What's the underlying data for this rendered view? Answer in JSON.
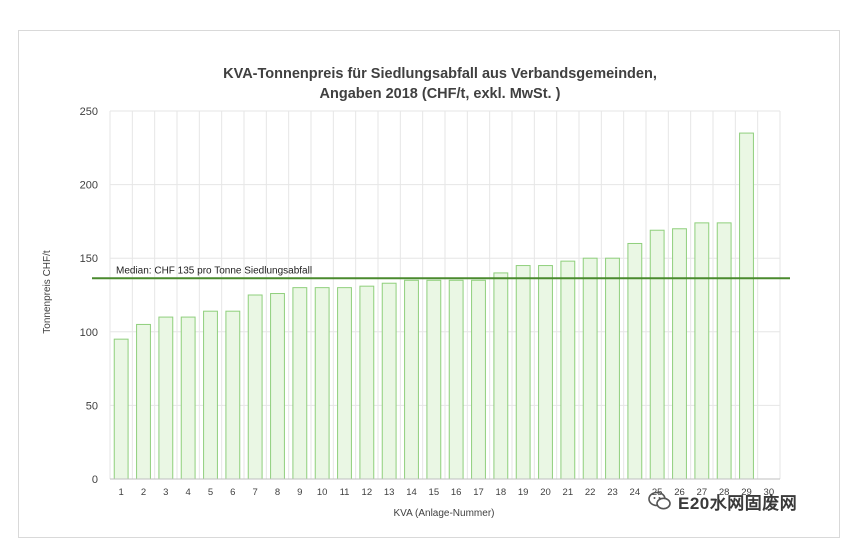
{
  "chart_data": {
    "type": "bar",
    "title_line1": "KVA-Tonnenpreis für Siedlungsabfall aus Verbandsgemeinden,",
    "title_line2": "Angaben 2018 (CHF/t, exkl. MwSt. )",
    "xlabel": "KVA (Anlage-Nummer)",
    "ylabel": "Tonnenpreis CHF/t",
    "ylim": [
      0,
      250
    ],
    "yticks": [
      0,
      50,
      100,
      150,
      200,
      250
    ],
    "categories": [
      "1",
      "2",
      "3",
      "4",
      "5",
      "6",
      "7",
      "8",
      "9",
      "10",
      "11",
      "12",
      "13",
      "14",
      "15",
      "16",
      "17",
      "18",
      "19",
      "20",
      "21",
      "22",
      "23",
      "24",
      "25",
      "26",
      "27",
      "28",
      "29",
      "30"
    ],
    "values": [
      95,
      105,
      110,
      110,
      114,
      114,
      125,
      126,
      130,
      130,
      130,
      131,
      133,
      135,
      135,
      135,
      135,
      140,
      145,
      145,
      148,
      150,
      150,
      160,
      169,
      170,
      174,
      174,
      235,
      0
    ],
    "bar_fill": "#eaf7e4",
    "bar_stroke": "#8fcf7c",
    "median": {
      "value": 135,
      "label": "Median: CHF 135 pro Tonne Siedlungsabfall",
      "color": "#4a8a2e"
    },
    "grid": true,
    "legend": "none"
  },
  "watermark": {
    "text": "E20水网固废网",
    "icon": "wechat-icon"
  }
}
